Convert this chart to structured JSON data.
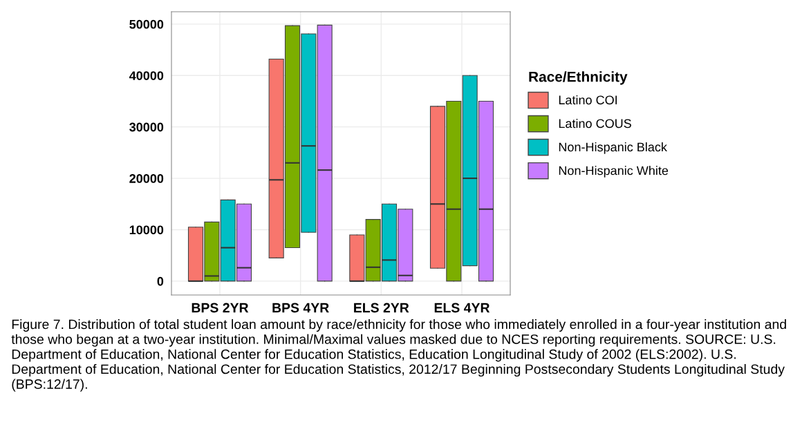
{
  "chart_data": {
    "type": "box",
    "categories": [
      "BPS 2YR",
      "BPS 4YR",
      "ELS 2YR",
      "ELS 4YR"
    ],
    "series": [
      {
        "name": "Latino COI",
        "color": "#f8766d",
        "boxes": [
          {
            "low": 0,
            "q1": 0,
            "median": 0,
            "q3": 10500,
            "high": 10500
          },
          {
            "low": 4500,
            "q1": 4500,
            "median": 19700,
            "q3": 43200,
            "high": 43200
          },
          {
            "low": 0,
            "q1": 0,
            "median": 0,
            "q3": 9000,
            "high": 9000
          },
          {
            "low": 2500,
            "q1": 2500,
            "median": 15000,
            "q3": 34000,
            "high": 34000
          }
        ]
      },
      {
        "name": "Latino COUS",
        "color": "#7cae00",
        "boxes": [
          {
            "low": 0,
            "q1": 0,
            "median": 1000,
            "q3": 11500,
            "high": 11500
          },
          {
            "low": 6500,
            "q1": 6500,
            "median": 23000,
            "q3": 49700,
            "high": 49700
          },
          {
            "low": 0,
            "q1": 0,
            "median": 2700,
            "q3": 12000,
            "high": 12000
          },
          {
            "low": 0,
            "q1": 0,
            "median": 14000,
            "q3": 35000,
            "high": 35000
          }
        ]
      },
      {
        "name": "Non-Hispanic Black",
        "color": "#00bfc4",
        "boxes": [
          {
            "low": 0,
            "q1": 0,
            "median": 6500,
            "q3": 15800,
            "high": 15800
          },
          {
            "low": 9500,
            "q1": 9500,
            "median": 26300,
            "q3": 48100,
            "high": 48100
          },
          {
            "low": 0,
            "q1": 0,
            "median": 4100,
            "q3": 15000,
            "high": 15000
          },
          {
            "low": 3000,
            "q1": 3000,
            "median": 20000,
            "q3": 40000,
            "high": 40000
          }
        ]
      },
      {
        "name": "Non-Hispanic White",
        "color": "#c77cff",
        "boxes": [
          {
            "low": 0,
            "q1": 0,
            "median": 2600,
            "q3": 15000,
            "high": 15000
          },
          {
            "low": 0,
            "q1": 0,
            "median": 21600,
            "q3": 49800,
            "high": 49800
          },
          {
            "low": 0,
            "q1": 0,
            "median": 1100,
            "q3": 14000,
            "high": 14000
          },
          {
            "low": 0,
            "q1": 0,
            "median": 14000,
            "q3": 35000,
            "high": 35000
          }
        ]
      }
    ],
    "ylim": [
      -2700,
      52400
    ],
    "yticks": [
      0,
      10000,
      20000,
      30000,
      40000,
      50000
    ],
    "grid": true,
    "legend": "right",
    "legend_title": "Race/Ethnicity",
    "annotations": [
      "Figure 7. Distribution of total student loan amount by race/ethnicity for those who immediately enrolled in a four-year institution and those who began at a two-year institution. Minimal/Maximal values masked due to NCES reporting requirements. SOURCE: U.S. Department of Education, National Center for Education Statistics, Education Longitudinal Study of 2002 (ELS:2002). U.S. Department of Education, National Center for Education Statistics, 2012/17 Beginning Postsecondary Students Longitudinal Study (BPS:12/17)."
    ]
  }
}
